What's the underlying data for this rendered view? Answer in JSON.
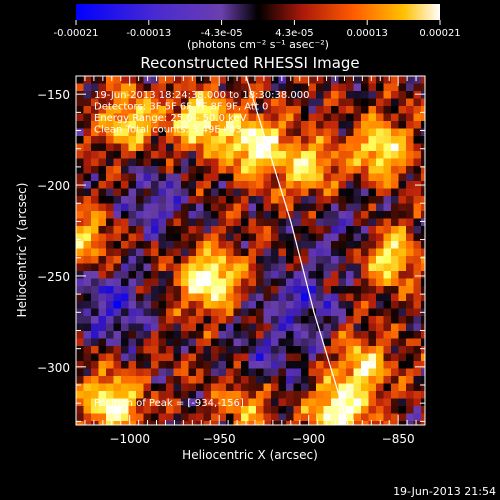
{
  "colorbar": {
    "ticks": [
      "-0.00021",
      "-0.00013",
      "-4.3e-05",
      "4.3e-05",
      "0.00013",
      "0.00021"
    ],
    "unit_label": "(photons cm⁻² s⁻¹ asec⁻²)"
  },
  "chart_data": {
    "type": "heatmap",
    "title": "Reconstructed RHESSI Image",
    "xlabel": "Heliocentric X (arcsec)",
    "ylabel": "Heliocentric Y (arcsec)",
    "xlim": [
      -1030,
      -835
    ],
    "ylim": [
      -332,
      -140
    ],
    "x_ticks": [
      -1000,
      -950,
      -900,
      -850
    ],
    "y_ticks": [
      -150,
      -200,
      -250,
      -300
    ],
    "x_tick_labels": [
      "−1000",
      "−950",
      "−900",
      "−850"
    ],
    "y_tick_labels": [
      "−150",
      "−200",
      "−250",
      "−300"
    ],
    "colormap": [
      "#0000ff",
      "#3a1ab4",
      "#6a3fae",
      "#000000",
      "#b8200a",
      "#ff6a00",
      "#ffb400",
      "#ffff60",
      "#ffffff"
    ],
    "bright_regions": [
      {
        "x": -955,
        "y": -252,
        "intensity": 1.0
      },
      {
        "x": -930,
        "y": -178,
        "intensity": 0.95
      },
      {
        "x": -1010,
        "y": -320,
        "intensity": 0.85
      },
      {
        "x": -883,
        "y": -325,
        "intensity": 0.9
      },
      {
        "x": -960,
        "y": -165,
        "intensity": 0.8
      },
      {
        "x": -1000,
        "y": -165,
        "intensity": 0.65
      },
      {
        "x": -860,
        "y": -180,
        "intensity": 0.75
      },
      {
        "x": -855,
        "y": -240,
        "intensity": 0.7
      },
      {
        "x": -900,
        "y": -190,
        "intensity": 0.6
      },
      {
        "x": -935,
        "y": -320,
        "intensity": 0.5
      },
      {
        "x": -870,
        "y": -300,
        "intensity": 0.65
      },
      {
        "x": -1025,
        "y": -230,
        "intensity": 0.55
      }
    ],
    "dark_regions": [
      {
        "x": -1010,
        "y": -265,
        "depth": 0.9
      },
      {
        "x": -905,
        "y": -265,
        "depth": 0.85
      },
      {
        "x": -985,
        "y": -210,
        "depth": 0.7
      },
      {
        "x": -925,
        "y": -300,
        "depth": 0.6
      },
      {
        "x": -880,
        "y": -225,
        "depth": 0.55
      }
    ],
    "limb_curve": [
      {
        "x": -935,
        "y": -140
      },
      {
        "x": -910,
        "y": -220
      },
      {
        "x": -897,
        "y": -270
      },
      {
        "x": -878,
        "y": -332
      }
    ],
    "info_lines": [
      "19-Jun-2013 18:24:38.000 to 18:30:38.000",
      "Detectors: 3F 5F 6F 7F 8F 9F, Att 0",
      "Energy Range: 25.0 - 50.0 keV",
      "Clean     Total counts: 3.49E+03"
    ],
    "peak_label": "Position of Peak = [-934,-156]",
    "timestamp": "19-Jun-2013 21:54"
  }
}
